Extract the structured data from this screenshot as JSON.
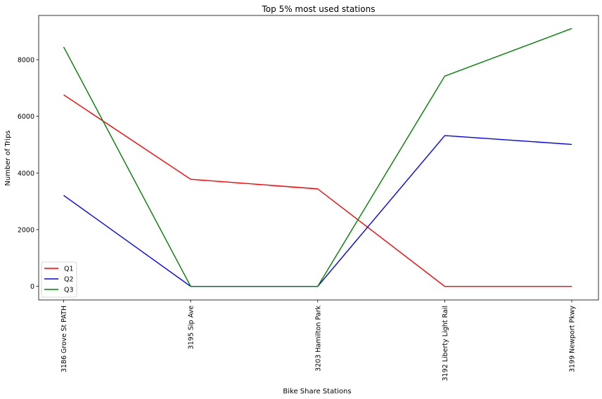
{
  "chart_data": {
    "type": "line",
    "title": "Top 5% most used stations",
    "xlabel": "Bike Share Stations",
    "ylabel": "Number of Trips",
    "categories": [
      "3186 Grove St PATH",
      "3195 Sip Ave",
      "3203 Hamilton Park",
      "3192 Liberty Light Rail",
      "3199 Newport Pkwy"
    ],
    "series": [
      {
        "name": "Q1",
        "color": "#ff0000",
        "values": [
          6760,
          3780,
          3440,
          0,
          0
        ]
      },
      {
        "name": "Q2",
        "color": "#0000ff",
        "values": [
          3210,
          0,
          0,
          5320,
          5010
        ]
      },
      {
        "name": "Q3",
        "color": "#008000",
        "values": [
          8450,
          0,
          0,
          7420,
          9100
        ]
      }
    ],
    "ylim": [
      -480,
      9560
    ],
    "yticks": [
      0,
      2000,
      4000,
      6000,
      8000
    ],
    "legend_position": "lower-left",
    "grid": false
  }
}
